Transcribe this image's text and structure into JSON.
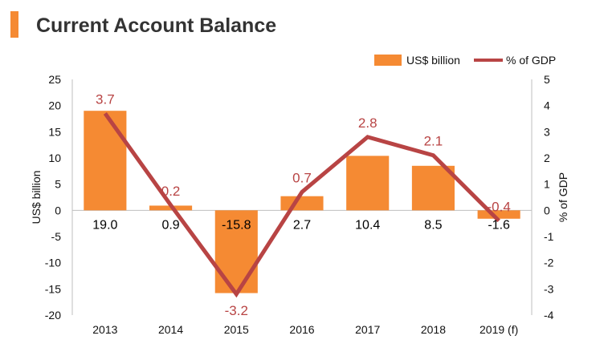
{
  "title": "Current Account Balance",
  "chart_data": {
    "type": "bar+line",
    "categories": [
      "2013",
      "2014",
      "2015",
      "2016",
      "2017",
      "2018",
      "2019 (f)"
    ],
    "series": [
      {
        "name": "US$ billion",
        "type": "bar",
        "axis": "left",
        "values": [
          19.0,
          0.9,
          -15.8,
          2.7,
          10.4,
          8.5,
          -1.6
        ],
        "labels": [
          "19.0",
          "0.9",
          "-15.8",
          "2.7",
          "10.4",
          "8.5",
          "-1.6"
        ],
        "color": "#F58A33"
      },
      {
        "name": "% of GDP",
        "type": "line",
        "axis": "right",
        "values": [
          3.7,
          0.2,
          -3.2,
          0.7,
          2.8,
          2.1,
          -0.4
        ],
        "labels": [
          "3.7",
          "0.2",
          "-3.2",
          "0.7",
          "2.8",
          "2.1",
          "-0.4"
        ],
        "color": "#B84444"
      }
    ],
    "ylabel_left": "US$ billion",
    "ylabel_right": "% of GDP",
    "ylim_left": [
      -20,
      25
    ],
    "yticks_left": [
      "25",
      "20",
      "15",
      "10",
      "5",
      "0",
      "-5",
      "-10",
      "-15",
      "-20"
    ],
    "ylim_right": [
      -4,
      5
    ],
    "yticks_right": [
      "5",
      "4",
      "3",
      "2",
      "1",
      "0",
      "-1",
      "-2",
      "-3",
      "-4"
    ],
    "legend": "top-right",
    "grid": false
  },
  "colors": {
    "accent": "#F58A33",
    "line": "#B84444",
    "title": "#333333",
    "axis": "#bfbfbf"
  }
}
